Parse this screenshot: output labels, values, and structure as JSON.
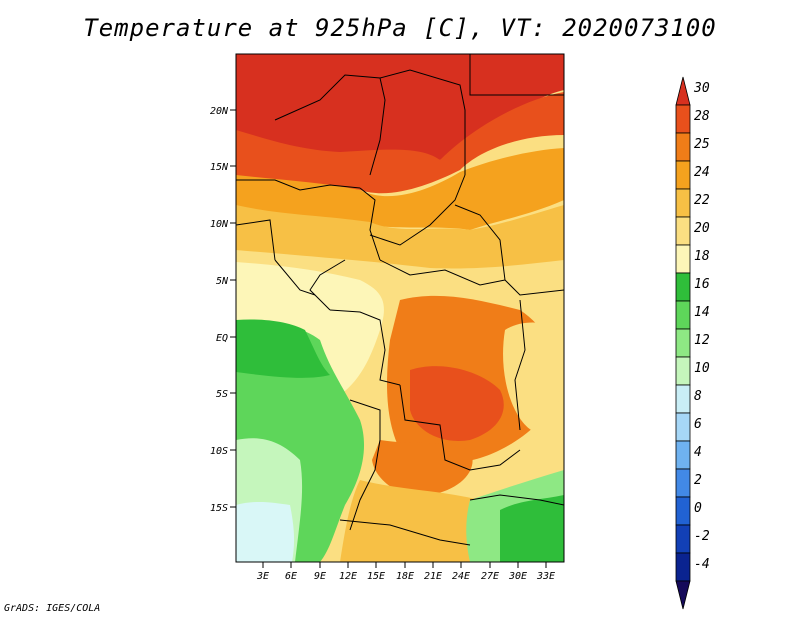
{
  "title": "Temperature at 925hPa [C], VT: 2020073100",
  "credit": "GrADS: IGES/COLA",
  "axes": {
    "lat_labels": [
      "20N",
      "15N",
      "10N",
      "5N",
      "EQ",
      "5S",
      "10S",
      "15S"
    ],
    "lon_labels": [
      "3E",
      "6E",
      "9E",
      "12E",
      "15E",
      "18E",
      "21E",
      "24E",
      "27E",
      "30E",
      "33E"
    ]
  },
  "colorbar": {
    "labels": [
      "30",
      "28",
      "25",
      "24",
      "22",
      "20",
      "18",
      "16",
      "14",
      "12",
      "10",
      "8",
      "6",
      "4",
      "2",
      "0",
      "-2",
      "-4"
    ],
    "colors": [
      "#d7301f",
      "#e8501c",
      "#f07d18",
      "#f5a21e",
      "#f7c045",
      "#fbdf82",
      "#fdf6b8",
      "#2fbe3a",
      "#5ed65a",
      "#8ee884",
      "#c5f6bc",
      "#c9eef6",
      "#a6d7f7",
      "#6fb2f0",
      "#4289e6",
      "#2162d3",
      "#1240b6",
      "#0a2390",
      "#150a5a"
    ]
  }
}
